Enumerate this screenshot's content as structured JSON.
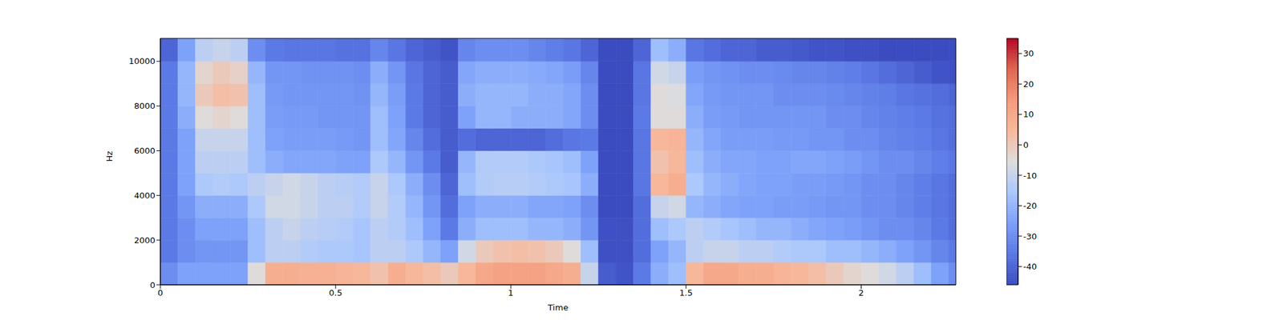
{
  "chart_data": {
    "type": "heatmap",
    "xlabel": "Time",
    "ylabel": "Hz",
    "xlim": [
      0,
      2.27
    ],
    "ylim": [
      0,
      11025
    ],
    "xticks": [
      0,
      0.5,
      1,
      1.5,
      2
    ],
    "yticks": [
      0,
      2000,
      4000,
      6000,
      8000,
      10000
    ],
    "x_edges": [
      0,
      0.05,
      0.1,
      0.15,
      0.2,
      0.25,
      0.3,
      0.35,
      0.4,
      0.45,
      0.5,
      0.55,
      0.6,
      0.65,
      0.7,
      0.75,
      0.8,
      0.85,
      0.9,
      0.95,
      1.0,
      1.05,
      1.1,
      1.15,
      1.2,
      1.25,
      1.3,
      1.35,
      1.4,
      1.45,
      1.5,
      1.55,
      1.6,
      1.65,
      1.7,
      1.75,
      1.8,
      1.85,
      1.9,
      1.95,
      2.0,
      2.05,
      2.1,
      2.15,
      2.2,
      2.25,
      2.3
    ],
    "y_edges": [
      0,
      1000,
      2000,
      3000,
      4000,
      5000,
      6000,
      7000,
      8000,
      9000,
      10000,
      11025
    ],
    "cells": [
      [
        -30,
        -25,
        -25,
        -25,
        -25,
        -5,
        8,
        8,
        7,
        7,
        6,
        5,
        2,
        8,
        5,
        3,
        0,
        5,
        10,
        12,
        12,
        12,
        10,
        8,
        -10,
        -42,
        -44,
        -35,
        -22,
        -18,
        5,
        10,
        10,
        8,
        8,
        6,
        5,
        3,
        0,
        -3,
        -5,
        -8,
        -12,
        -18,
        -25,
        -30
      ],
      [
        -35,
        -30,
        -28,
        -28,
        -28,
        -18,
        -12,
        -12,
        -14,
        -15,
        -15,
        -16,
        -12,
        -12,
        -15,
        -20,
        -25,
        -8,
        0,
        2,
        3,
        2,
        0,
        -5,
        -18,
        -45,
        -45,
        -38,
        -25,
        -20,
        -12,
        -10,
        -10,
        -12,
        -12,
        -14,
        -15,
        -15,
        -18,
        -18,
        -20,
        -22,
        -25,
        -28,
        -32,
        -35
      ],
      [
        -35,
        -30,
        -25,
        -25,
        -25,
        -18,
        -12,
        -10,
        -12,
        -13,
        -14,
        -16,
        -12,
        -14,
        -18,
        -25,
        -35,
        -22,
        -18,
        -18,
        -18,
        -20,
        -20,
        -22,
        -28,
        -45,
        -45,
        -38,
        -18,
        -15,
        -12,
        -14,
        -16,
        -18,
        -20,
        -20,
        -22,
        -24,
        -25,
        -26,
        -28,
        -30,
        -30,
        -32,
        -35,
        -38
      ],
      [
        -35,
        -28,
        -22,
        -22,
        -22,
        -15,
        -8,
        -8,
        -10,
        -12,
        -12,
        -14,
        -10,
        -14,
        -20,
        -28,
        -38,
        -25,
        -22,
        -22,
        -22,
        -24,
        -24,
        -25,
        -30,
        -46,
        -46,
        -38,
        -10,
        -8,
        -20,
        -22,
        -24,
        -25,
        -25,
        -26,
        -26,
        -27,
        -28,
        -28,
        -30,
        -30,
        -32,
        -34,
        -36,
        -38
      ],
      [
        -35,
        -25,
        -15,
        -14,
        -15,
        -12,
        -10,
        -8,
        -10,
        -12,
        -13,
        -14,
        -10,
        -15,
        -22,
        -30,
        -40,
        -18,
        -14,
        -13,
        -13,
        -14,
        -15,
        -16,
        -22,
        -46,
        -46,
        -36,
        5,
        8,
        -15,
        -20,
        -22,
        -24,
        -25,
        -25,
        -26,
        -26,
        -27,
        -28,
        -30,
        -30,
        -32,
        -34,
        -36,
        -38
      ],
      [
        -35,
        -25,
        -12,
        -12,
        -12,
        -18,
        -22,
        -24,
        -24,
        -24,
        -25,
        -25,
        -15,
        -20,
        -28,
        -35,
        -42,
        -20,
        -14,
        -14,
        -14,
        -15,
        -16,
        -18,
        -25,
        -46,
        -46,
        -36,
        2,
        5,
        -18,
        -22,
        -24,
        -24,
        -25,
        -25,
        -24,
        -24,
        -25,
        -26,
        -28,
        -30,
        -30,
        -32,
        -34,
        -36
      ],
      [
        -35,
        -25,
        -10,
        -10,
        -10,
        -18,
        -25,
        -26,
        -26,
        -26,
        -27,
        -28,
        -18,
        -24,
        -32,
        -38,
        -42,
        -38,
        -40,
        -40,
        -40,
        -40,
        -38,
        -36,
        -35,
        -46,
        -46,
        -36,
        5,
        6,
        -20,
        -24,
        -26,
        -26,
        -26,
        -27,
        -27,
        -28,
        -28,
        -30,
        -30,
        -32,
        -33,
        -34,
        -36,
        -38
      ],
      [
        -35,
        -22,
        -5,
        -3,
        -5,
        -18,
        -26,
        -27,
        -27,
        -28,
        -28,
        -28,
        -18,
        -25,
        -35,
        -40,
        -42,
        -25,
        -20,
        -20,
        -22,
        -22,
        -22,
        -24,
        -30,
        -46,
        -46,
        -35,
        -5,
        -5,
        -22,
        -26,
        -27,
        -28,
        -28,
        -28,
        -28,
        -28,
        -30,
        -30,
        -32,
        -33,
        -34,
        -35,
        -37,
        -38
      ],
      [
        -35,
        -20,
        0,
        3,
        2,
        -18,
        -27,
        -28,
        -28,
        -28,
        -28,
        -29,
        -20,
        -26,
        -35,
        -40,
        -42,
        -22,
        -20,
        -20,
        -20,
        -22,
        -22,
        -24,
        -30,
        -46,
        -46,
        -36,
        -5,
        -6,
        -24,
        -27,
        -28,
        -28,
        -28,
        -30,
        -30,
        -30,
        -31,
        -32,
        -33,
        -34,
        -36,
        -37,
        -38,
        -40
      ],
      [
        -35,
        -20,
        -3,
        0,
        -2,
        -20,
        -28,
        -28,
        -29,
        -29,
        -29,
        -30,
        -22,
        -28,
        -36,
        -40,
        -42,
        -24,
        -22,
        -22,
        -22,
        -23,
        -24,
        -26,
        -32,
        -46,
        -46,
        -36,
        -8,
        -10,
        -26,
        -28,
        -29,
        -30,
        -30,
        -31,
        -32,
        -32,
        -33,
        -34,
        -36,
        -38,
        -40,
        -42,
        -44,
        -45
      ],
      [
        -40,
        -25,
        -12,
        -10,
        -12,
        -30,
        -35,
        -36,
        -36,
        -36,
        -37,
        -37,
        -32,
        -36,
        -40,
        -42,
        -44,
        -32,
        -30,
        -30,
        -30,
        -32,
        -34,
        -36,
        -40,
        -46,
        -46,
        -40,
        -18,
        -22,
        -36,
        -38,
        -40,
        -40,
        -42,
        -42,
        -43,
        -44,
        -44,
        -45,
        -45,
        -46,
        -46,
        -46,
        -46,
        -46
      ]
    ],
    "colorbar": {
      "range": [
        -46,
        35
      ],
      "ticks": [
        -40,
        -30,
        -20,
        -10,
        0,
        10,
        20,
        30
      ]
    }
  }
}
